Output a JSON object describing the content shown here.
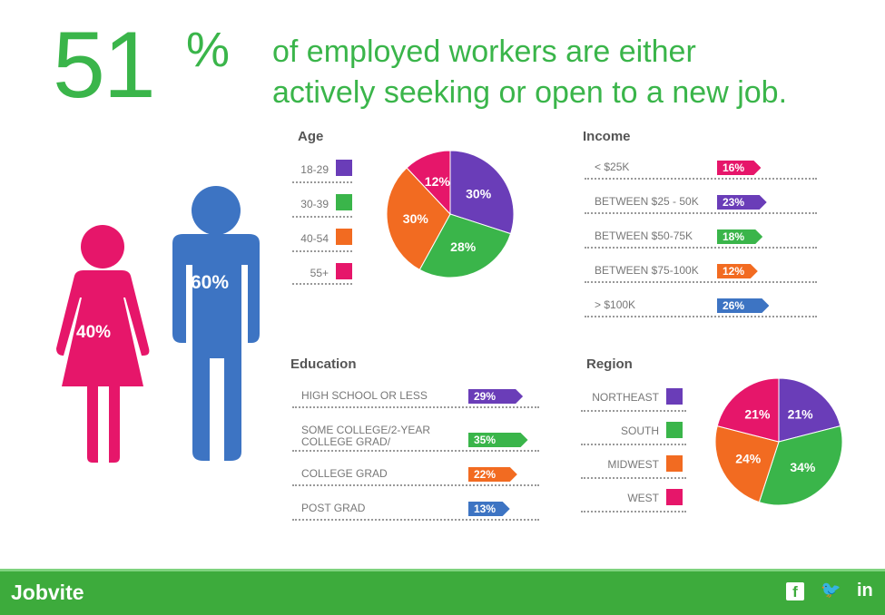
{
  "headline": {
    "number": "51",
    "percent_sign": "%",
    "line1": "of employed workers are either",
    "line2": "actively seeking or open to a new job."
  },
  "figures": {
    "female_pct": "40%",
    "male_pct": "60%",
    "female_color": "#e6166a",
    "male_color": "#3d74c3"
  },
  "footer": {
    "brand": "Jobvite",
    "social_icons": [
      "facebook-icon",
      "twitter-icon",
      "linkedin-icon"
    ],
    "social_labels": [
      "f",
      "🐦",
      "in"
    ]
  },
  "colors": {
    "purple": "#6a3db8",
    "green": "#3ab54a",
    "orange": "#f26b21",
    "pink": "#e6166a",
    "blue": "#3d74c3"
  },
  "chart_data": [
    {
      "type": "pie",
      "title": "Age",
      "labels": [
        "18-29",
        "30-39",
        "40-54",
        "55+"
      ],
      "slices": [
        {
          "label": "18-29",
          "value": 30,
          "color": "#6a3db8"
        },
        {
          "label": "30-39",
          "value": 28,
          "color": "#3ab54a"
        },
        {
          "label": "40-54",
          "value": 30,
          "color": "#f26b21"
        },
        {
          "label": "55+",
          "value": 12,
          "color": "#e6166a"
        }
      ]
    },
    {
      "type": "bar",
      "title": "Income",
      "categories": [
        "< $25K",
        "BETWEEN $25 - 50K",
        "BETWEEN $50-75K",
        "BETWEEN $75-100K",
        "> $100K"
      ],
      "values": [
        16,
        23,
        18,
        12,
        26
      ],
      "colors": [
        "#e6166a",
        "#6a3db8",
        "#3ab54a",
        "#f26b21",
        "#3d74c3"
      ]
    },
    {
      "type": "bar",
      "title": "Education",
      "categories": [
        "HIGH SCHOOL OR LESS",
        "SOME COLLEGE/2-YEAR COLLEGE GRAD/",
        "COLLEGE GRAD",
        "POST GRAD"
      ],
      "values": [
        29,
        35,
        22,
        13
      ],
      "colors": [
        "#6a3db8",
        "#3ab54a",
        "#f26b21",
        "#3d74c3"
      ]
    },
    {
      "type": "pie",
      "title": "Region",
      "labels": [
        "NORTHEAST",
        "SOUTH",
        "MIDWEST",
        "WEST"
      ],
      "slices": [
        {
          "label": "NORTHEAST",
          "value": 21,
          "color": "#6a3db8"
        },
        {
          "label": "SOUTH",
          "value": 34,
          "color": "#3ab54a"
        },
        {
          "label": "MIDWEST",
          "value": 24,
          "color": "#f26b21"
        },
        {
          "label": "WEST",
          "value": 21,
          "color": "#e6166a"
        }
      ]
    }
  ]
}
